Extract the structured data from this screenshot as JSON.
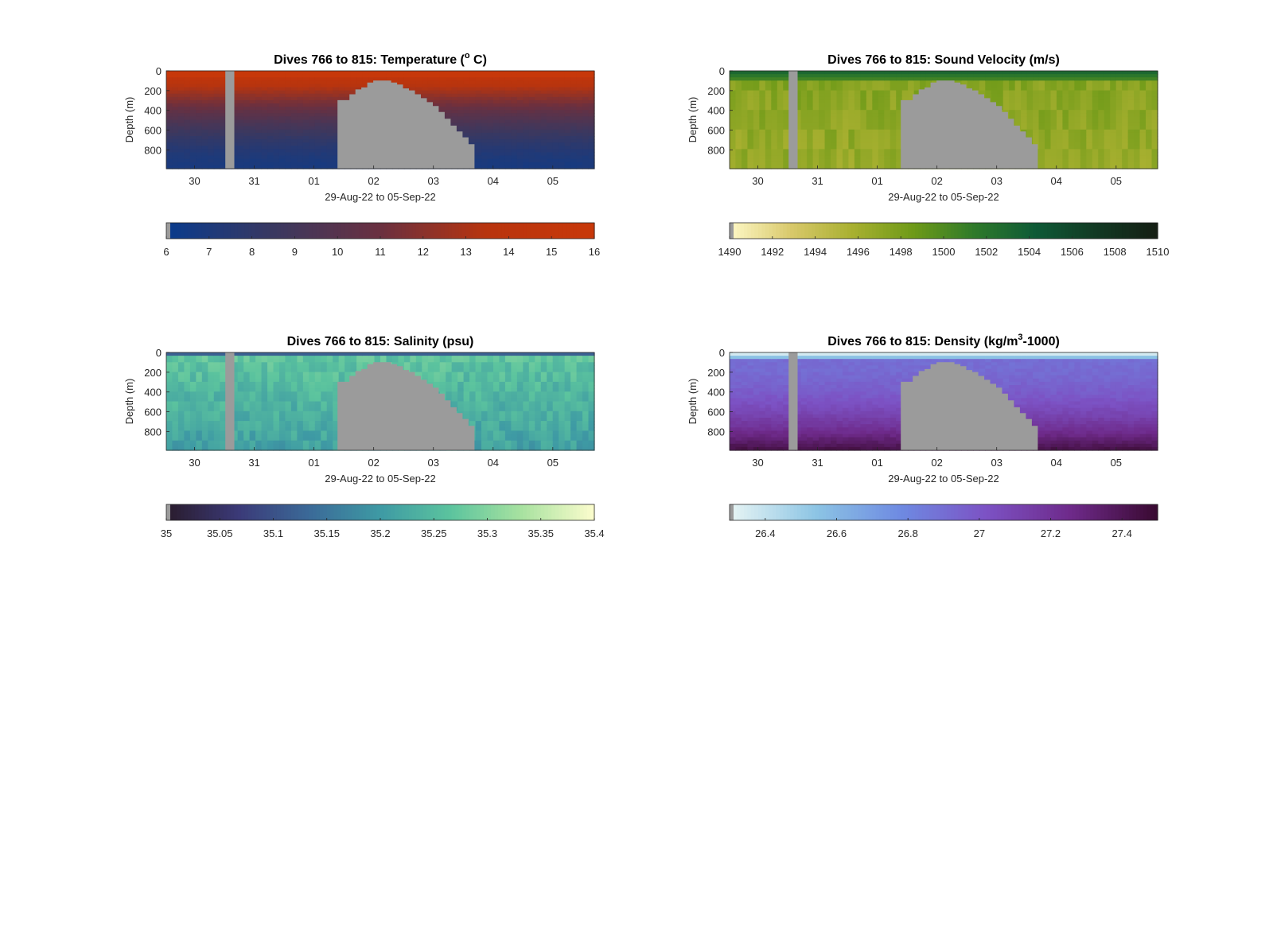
{
  "chart_data": [
    {
      "type": "heatmap",
      "title": "Dives 766 to 815: Temperature (° C)",
      "title_parts": {
        "before": "Dives 766 to 815: Temperature (",
        "sup": "o",
        "after": " C)"
      },
      "xlabel": "29-Aug-22 to 05-Sep-22",
      "ylabel": "Depth (m)",
      "x_ticks": [
        "30",
        "31",
        "01",
        "02",
        "03",
        "04",
        "05"
      ],
      "y_ticks": [
        0,
        200,
        400,
        600,
        800
      ],
      "ylim": [
        0,
        990
      ],
      "colorbar": {
        "ticks": [
          "6",
          "7",
          "8",
          "9",
          "10",
          "11",
          "12",
          "13",
          "14",
          "15",
          "16"
        ],
        "range": [
          6,
          16
        ],
        "colors": [
          "#0a3b8c",
          "#3a3860",
          "#6a3040",
          "#b8340e",
          "#c8380a"
        ]
      },
      "profile": {
        "surface_value": 15.5,
        "deep_value": 6.8
      }
    },
    {
      "type": "heatmap",
      "title": "Dives 766 to 815: Sound Velocity (m/s)",
      "xlabel": "29-Aug-22 to 05-Sep-22",
      "ylabel": "Depth (m)",
      "x_ticks": [
        "30",
        "31",
        "01",
        "02",
        "03",
        "04",
        "05"
      ],
      "y_ticks": [
        0,
        200,
        400,
        600,
        800
      ],
      "ylim": [
        0,
        990
      ],
      "colorbar": {
        "ticks": [
          "1490",
          "1492",
          "1494",
          "1496",
          "1498",
          "1500",
          "1502",
          "1504",
          "1506",
          "1508",
          "1510"
        ],
        "range": [
          1490,
          1510
        ],
        "colors": [
          "#fdf7c4",
          "#d8c86a",
          "#a8b030",
          "#6e9a18",
          "#2f7a2a",
          "#0e5a36",
          "#123a24",
          "#151f14"
        ]
      },
      "profile": {
        "surface_value": 1503,
        "deep_value": 1497.5
      }
    },
    {
      "type": "heatmap",
      "title": "Dives 766 to 815: Salinity (psu)",
      "xlabel": "29-Aug-22 to 05-Sep-22",
      "ylabel": "Depth (m)",
      "x_ticks": [
        "30",
        "31",
        "01",
        "02",
        "03",
        "04",
        "05"
      ],
      "y_ticks": [
        0,
        200,
        400,
        600,
        800
      ],
      "ylim": [
        0,
        990
      ],
      "colorbar": {
        "ticks": [
          "35",
          "35.05",
          "35.1",
          "35.15",
          "35.2",
          "35.25",
          "35.3",
          "35.35",
          "35.4"
        ],
        "range": [
          35,
          35.4
        ],
        "colors": [
          "#2a1c2e",
          "#3b3a78",
          "#3b6a98",
          "#3e9aa4",
          "#5cc49e",
          "#a8e2a0",
          "#fafccc"
        ]
      },
      "profile": {
        "surface_value": 35.26,
        "deep_value": 35.2
      }
    },
    {
      "type": "heatmap",
      "title": "Dives 766 to 815: Density (kg/m³-1000)",
      "title_parts": {
        "before": "Dives 766 to 815: Density (kg/m",
        "sup": "3",
        "after": "-1000)"
      },
      "xlabel": "29-Aug-22 to 05-Sep-22",
      "ylabel": "Depth (m)",
      "x_ticks": [
        "30",
        "31",
        "01",
        "02",
        "03",
        "04",
        "05"
      ],
      "y_ticks": [
        0,
        200,
        400,
        600,
        800
      ],
      "ylim": [
        0,
        990
      ],
      "colorbar": {
        "ticks": [
          "26.4",
          "26.6",
          "26.8",
          "27",
          "27.2",
          "27.4"
        ],
        "range": [
          26.3,
          27.5
        ],
        "colors": [
          "#e6f4f4",
          "#8cc4e4",
          "#6e8ae2",
          "#7c52c4",
          "#6e2a8a",
          "#3a0a32"
        ]
      },
      "profile": {
        "surface_value": 26.35,
        "deep_value": 27.45
      }
    }
  ],
  "missing_color": "#9b9b9b"
}
